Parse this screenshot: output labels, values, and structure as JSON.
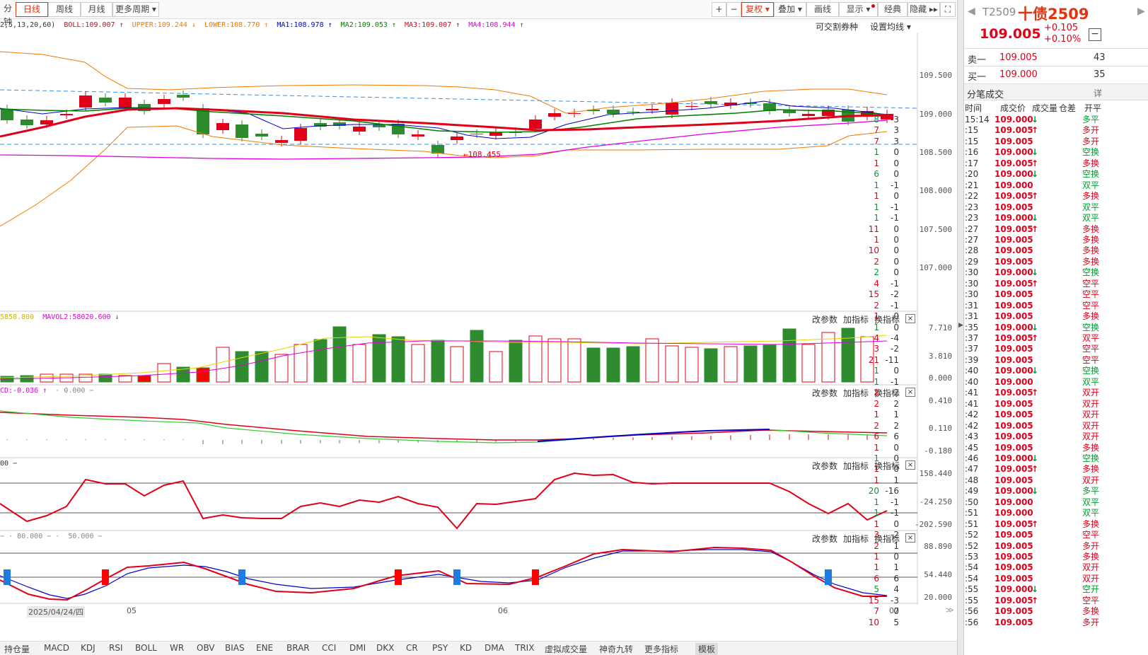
{
  "toolbar": {
    "tabs": [
      "分钟",
      "日线",
      "周线",
      "月线",
      "更多周期"
    ],
    "active_tab": "日线",
    "right_buttons": [
      "复权",
      "叠加",
      "画线",
      "显示",
      "经典",
      "隐藏"
    ],
    "plus": "+",
    "minus": "−"
  },
  "main_indicators": {
    "params": "2,5,13,20,60)",
    "boll": "BOLL:109.007",
    "upper": "UPPER:109.244",
    "lower": "LOWER:108.770",
    "ma1": "MA1:108.978",
    "ma2": "MA2:109.053",
    "ma3": "MA3:109.007",
    "ma4": "MA4:108.944",
    "link1": "可交割券种",
    "link2": "设置均线"
  },
  "price_axis": [
    "109.500",
    "109.000",
    "108.500",
    "108.000",
    "107.500",
    "107.000"
  ],
  "min_label": "108.455",
  "vol_panel": {
    "label1": "5858.800",
    "label2": "MAVOL2:58020.600",
    "axis": [
      "7.710",
      "3.810",
      "0.000"
    ]
  },
  "macd_panel": {
    "label1": "CD:-0.036",
    "label2": "0.000",
    "axis": [
      "0.410",
      "0.110",
      "-0.180"
    ]
  },
  "cci_panel": {
    "label1": "00",
    "axis": [
      "158.440",
      "-24.250",
      "-202.590"
    ]
  },
  "kdj_panel": {
    "label1": "80.000",
    "label2": "50.000",
    "axis": [
      "88.890",
      "54.440",
      "20.000"
    ]
  },
  "panel_links": [
    "改参数",
    "加指标",
    "换指标"
  ],
  "date_labels": {
    "first": "2025/04/24/四",
    "m1": "05",
    "m2": "06",
    "m3": "07"
  },
  "bottom_tabs": [
    "持仓量",
    "MACD",
    "KDJ",
    "RSI",
    "BOLL",
    "WR",
    "OBV",
    "BIAS",
    "ENE",
    "BRAR",
    "CCI",
    "DMI",
    "DKX",
    "CR",
    "PSY",
    "KD",
    "DMA",
    "TRIX",
    "虚拟成交量",
    "神奇九转",
    "更多指标",
    "模板"
  ],
  "active_bottom": "模板",
  "quote": {
    "code": "T2509",
    "name": "十债2509",
    "price": "109.005",
    "change": "+0.105",
    "pct": "+0.10%",
    "sell_label": "卖一",
    "sell_price": "109.005",
    "sell_vol": "43",
    "buy_label": "买一",
    "buy_price": "109.000",
    "buy_vol": "35",
    "trades_title": "分笔成交",
    "detail": "详",
    "headers": [
      "时间",
      "成交价",
      "成交量",
      "仓差",
      "开平"
    ]
  },
  "trades": [
    [
      "15:14",
      "109.000",
      "↓",
      "8",
      "-3",
      "多平",
      "g"
    ],
    [
      ":15",
      "109.005",
      "↑",
      "7",
      "3",
      "多开",
      "r"
    ],
    [
      ":15",
      "109.005",
      "",
      "7",
      "3",
      "多开",
      "r"
    ],
    [
      ":16",
      "109.000",
      "↓",
      "1",
      "0",
      "空换",
      "g"
    ],
    [
      ":17",
      "109.005",
      "↑",
      "1",
      "0",
      "多换",
      "r"
    ],
    [
      ":20",
      "109.000",
      "↓",
      "6",
      "0",
      "空换",
      "g"
    ],
    [
      ":21",
      "109.000",
      "",
      "1",
      "-1",
      "双平",
      "g"
    ],
    [
      ":22",
      "109.005",
      "↑",
      "1",
      "0",
      "多换",
      "r"
    ],
    [
      ":23",
      "109.005",
      "",
      "1",
      "-1",
      "双平",
      "g"
    ],
    [
      ":23",
      "109.000",
      "↓",
      "1",
      "-1",
      "双平",
      "g"
    ],
    [
      ":27",
      "109.005",
      "↑",
      "11",
      "0",
      "多换",
      "r"
    ],
    [
      ":27",
      "109.005",
      "",
      "1",
      "0",
      "多换",
      "r"
    ],
    [
      ":28",
      "109.005",
      "",
      "10",
      "0",
      "多换",
      "r"
    ],
    [
      ":29",
      "109.005",
      "",
      "2",
      "0",
      "多换",
      "r"
    ],
    [
      ":30",
      "109.000",
      "↓",
      "2",
      "0",
      "空换",
      "g"
    ],
    [
      ":30",
      "109.005",
      "↑",
      "4",
      "-1",
      "空平",
      "r"
    ],
    [
      ":30",
      "109.005",
      "",
      "15",
      "-2",
      "空平",
      "r"
    ],
    [
      ":31",
      "109.005",
      "",
      "2",
      "-1",
      "空平",
      "r"
    ],
    [
      ":31",
      "109.005",
      "",
      "1",
      "0",
      "多换",
      "r"
    ],
    [
      ":35",
      "109.000",
      "↓",
      "1",
      "0",
      "空换",
      "g"
    ],
    [
      ":37",
      "109.005",
      "↑",
      "4",
      "-4",
      "双平",
      "r"
    ],
    [
      ":37",
      "109.005",
      "",
      "3",
      "-2",
      "空平",
      "r"
    ],
    [
      ":39",
      "109.005",
      "",
      "21",
      "-11",
      "空平",
      "r"
    ],
    [
      ":40",
      "109.000",
      "↓",
      "1",
      "0",
      "空换",
      "g"
    ],
    [
      ":40",
      "109.000",
      "",
      "1",
      "-1",
      "双平",
      "g"
    ],
    [
      ":41",
      "109.005",
      "↑",
      "2",
      "2",
      "双开",
      "r"
    ],
    [
      ":41",
      "109.005",
      "",
      "2",
      "2",
      "双开",
      "r"
    ],
    [
      ":42",
      "109.005",
      "",
      "1",
      "1",
      "双开",
      "r"
    ],
    [
      ":42",
      "109.005",
      "",
      "2",
      "2",
      "双开",
      "r"
    ],
    [
      ":43",
      "109.005",
      "",
      "6",
      "6",
      "双开",
      "r"
    ],
    [
      ":45",
      "109.005",
      "",
      "1",
      "0",
      "多换",
      "r"
    ],
    [
      ":46",
      "109.000",
      "↓",
      "1",
      "0",
      "空换",
      "g"
    ],
    [
      ":47",
      "109.005",
      "↑",
      "1",
      "0",
      "多换",
      "r"
    ],
    [
      ":48",
      "109.005",
      "",
      "1",
      "1",
      "双开",
      "r"
    ],
    [
      ":49",
      "109.000",
      "↓",
      "20",
      "-16",
      "多平",
      "g"
    ],
    [
      ":50",
      "109.000",
      "",
      "1",
      "-1",
      "双平",
      "g"
    ],
    [
      ":51",
      "109.000",
      "",
      "1",
      "-1",
      "双平",
      "g"
    ],
    [
      ":51",
      "109.005",
      "↑",
      "1",
      "0",
      "多换",
      "r"
    ],
    [
      ":52",
      "109.005",
      "",
      "3",
      "-2",
      "空平",
      "r"
    ],
    [
      ":52",
      "109.005",
      "",
      "2",
      "1",
      "多开",
      "r"
    ],
    [
      ":53",
      "109.005",
      "",
      "1",
      "0",
      "多换",
      "r"
    ],
    [
      ":54",
      "109.005",
      "",
      "1",
      "1",
      "双开",
      "r"
    ],
    [
      ":54",
      "109.005",
      "",
      "6",
      "6",
      "双开",
      "r"
    ],
    [
      ":55",
      "109.000",
      "↓",
      "5",
      "4",
      "空开",
      "g"
    ],
    [
      ":55",
      "109.005",
      "↑",
      "15",
      "-3",
      "空平",
      "r"
    ],
    [
      ":56",
      "109.005",
      "",
      "7",
      "0",
      "多换",
      "r"
    ],
    [
      ":56",
      "109.005",
      "",
      "10",
      "5",
      "多开",
      "r"
    ]
  ]
}
